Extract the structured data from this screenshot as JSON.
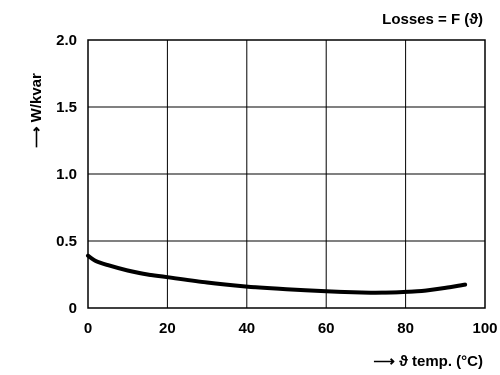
{
  "chart_data": {
    "type": "line",
    "title": "Losses = F (ϑ)",
    "xlabel": "⟶ ϑ temp. (°C)",
    "ylabel": "⟶ W/kvar",
    "xlim": [
      0,
      100
    ],
    "ylim": [
      0,
      2.0
    ],
    "x_ticks": [
      0,
      20,
      40,
      60,
      80,
      100
    ],
    "y_ticks": [
      0,
      0.5,
      1.0,
      1.5,
      2.0
    ],
    "x_tick_labels": [
      "0",
      "20",
      "40",
      "60",
      "80",
      "100"
    ],
    "y_tick_labels": [
      "0",
      "0.5",
      "1.0",
      "1.5",
      "2.0"
    ],
    "grid": true,
    "line_color": "#000000",
    "series": [
      {
        "x": [
          0,
          2,
          5,
          10,
          15,
          20,
          30,
          40,
          50,
          60,
          70,
          75,
          80,
          85,
          90,
          95
        ],
        "y": [
          0.39,
          0.35,
          0.32,
          0.28,
          0.25,
          0.23,
          0.19,
          0.16,
          0.14,
          0.125,
          0.115,
          0.115,
          0.12,
          0.13,
          0.15,
          0.175
        ]
      }
    ]
  }
}
